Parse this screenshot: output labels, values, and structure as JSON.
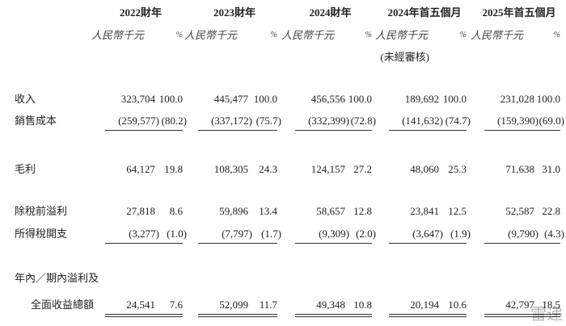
{
  "header": {
    "periods": [
      {
        "title": "2022財年",
        "amount_unit": "人民幣千元",
        "percent_unit": "%"
      },
      {
        "title": "2023財年",
        "amount_unit": "人民幣千元",
        "percent_unit": "%"
      },
      {
        "title": "2024財年",
        "amount_unit": "人民幣千元",
        "percent_unit": "%"
      },
      {
        "title": "2024年首五個月",
        "amount_unit": "人民幣千元",
        "percent_unit": "%",
        "note": "(未經審核)"
      },
      {
        "title": "2025年首五個月",
        "amount_unit": "人民幣千元",
        "percent_unit": "%"
      }
    ]
  },
  "table": {
    "rows": [
      {
        "label": [
          "收入"
        ],
        "cells": [
          "323,704",
          "100.0",
          "445,477",
          "100.0",
          "456,556",
          "100.0",
          "189,692",
          "100.0",
          "231,028",
          "100.0"
        ]
      },
      {
        "label": [
          "銷售成本"
        ],
        "cells": [
          "(259,577)",
          "(80.2)",
          "(337,172)",
          "(75.7)",
          "(332,399)",
          "(72.8)",
          "(141,632)",
          "(74.7)",
          "(159,390)",
          "(69.0)"
        ],
        "rule": "single"
      },
      {
        "label": [
          "毛利"
        ],
        "cells": [
          "64,127",
          "19.8",
          "108,305",
          "24.3",
          "124,157",
          "27.2",
          "48,060",
          "25.3",
          "71,638",
          "31.0"
        ]
      },
      {
        "label": [
          "除稅前溢利"
        ],
        "cells": [
          "27,818",
          "8.6",
          "59,896",
          "13.4",
          "58,657",
          "12.8",
          "23,841",
          "12.5",
          "52,587",
          "22.8"
        ]
      },
      {
        "label": [
          "所得稅開支"
        ],
        "cells": [
          "(3,277)",
          "(1.0)",
          "(7,797)",
          "(1.7)",
          "(9,309)",
          "(2.0)",
          "(3,647)",
          "(1.9)",
          "(9,790)",
          "(4.3)"
        ],
        "rule": "single"
      },
      {
        "label": [
          "年內／期內溢利及",
          "全面收益總額"
        ],
        "cells": [
          "24,541",
          "7.6",
          "52,099",
          "11.7",
          "49,348",
          "10.8",
          "20,194",
          "10.6",
          "42,797",
          "18.5"
        ],
        "rule": "double"
      }
    ]
  },
  "watermark": "雷递"
}
